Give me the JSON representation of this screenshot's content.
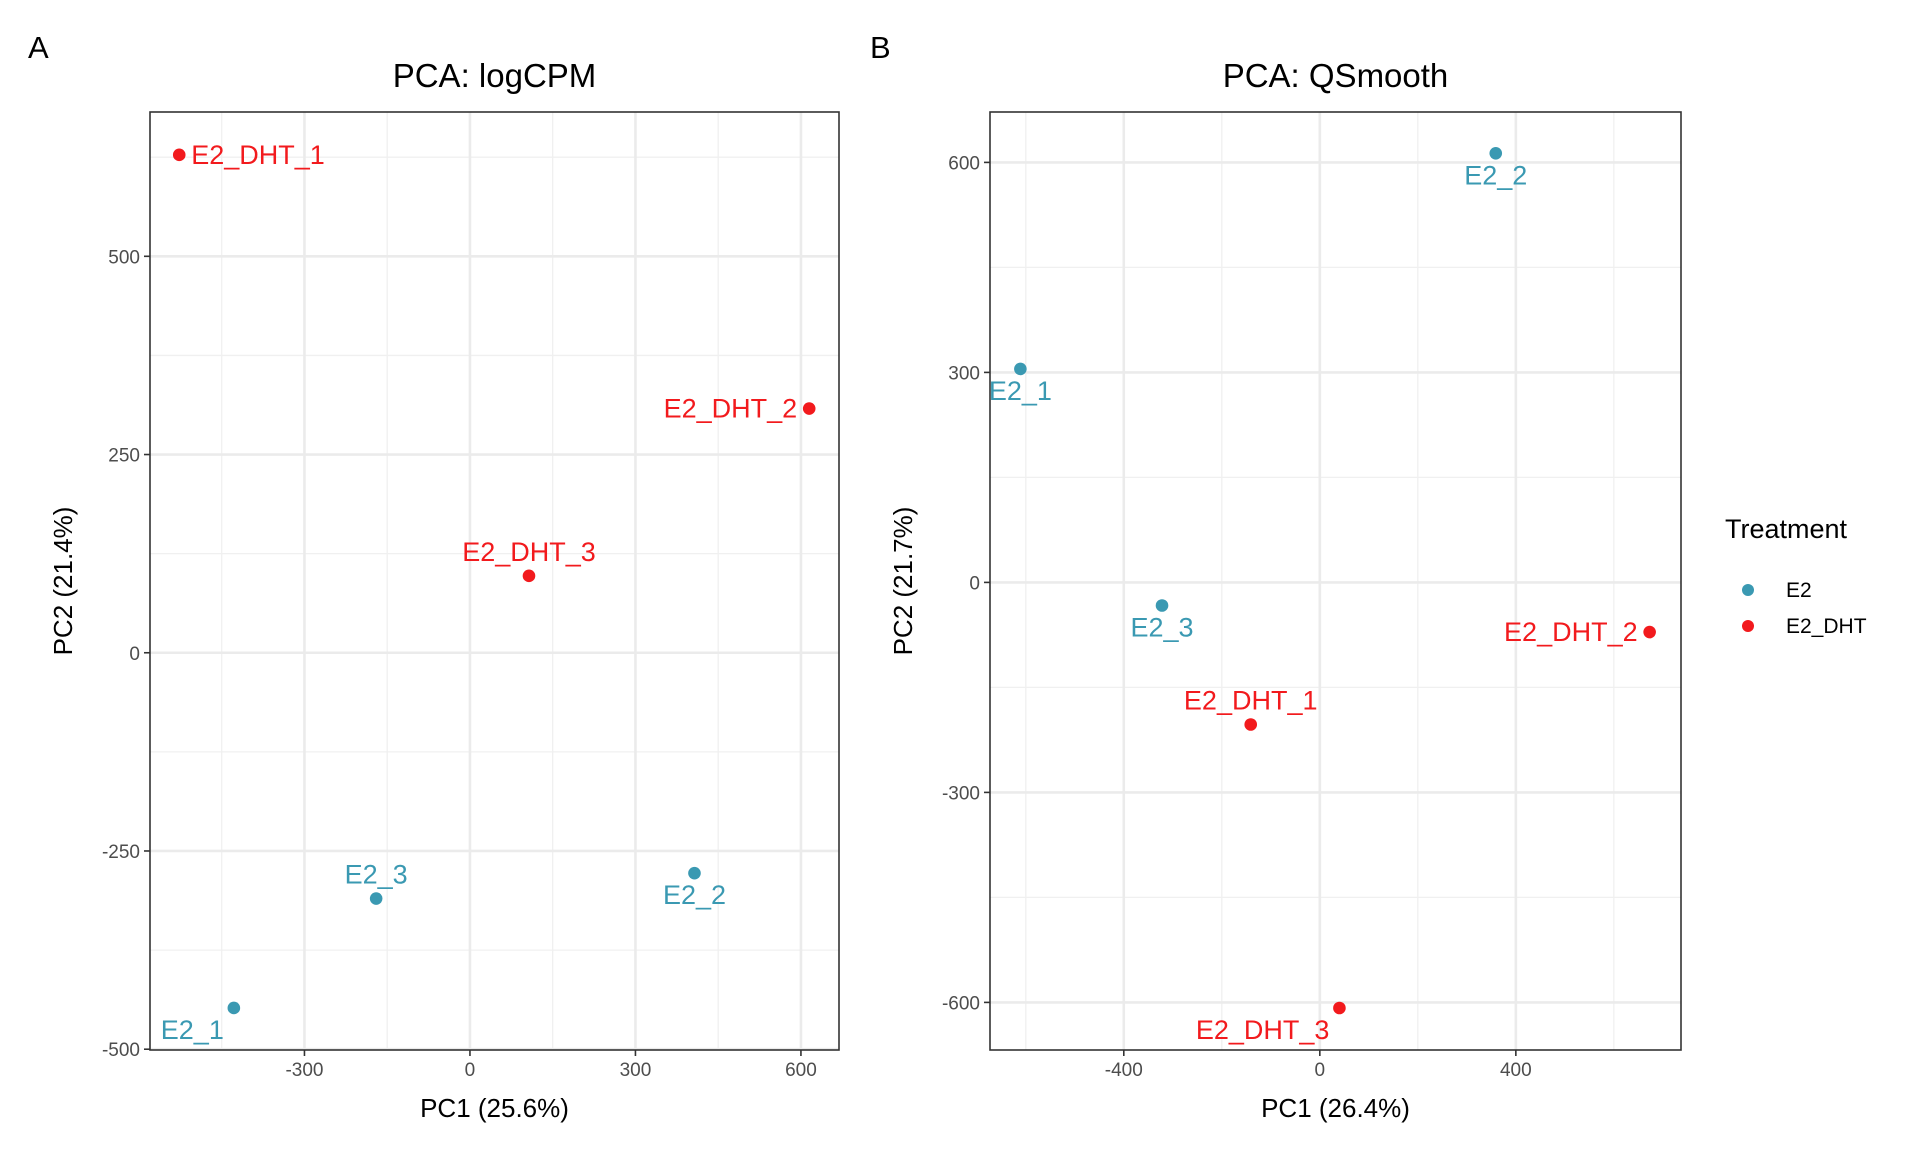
{
  "figure": {
    "panel_tags": [
      "A",
      "B"
    ],
    "legend": {
      "title": "Treatment",
      "entries": [
        {
          "label": "E2",
          "color": "#3A99B2"
        },
        {
          "label": "E2_DHT",
          "color": "#F21A1D"
        }
      ]
    }
  },
  "chart_data": [
    {
      "type": "scatter",
      "panel": "A",
      "title": "PCA: logCPM",
      "xlabel": "PC1 (25.6%)",
      "ylabel": "PC2 (21.4%)",
      "xlim": [
        -580,
        669
      ],
      "ylim": [
        -501,
        682
      ],
      "xticks": [
        -300,
        0,
        300,
        600
      ],
      "yticks": [
        -500,
        -250,
        0,
        250,
        500
      ],
      "xminor": [
        -450,
        -150,
        150,
        450
      ],
      "yminor": [
        -375,
        -125,
        125,
        375,
        625
      ],
      "grid": true,
      "points": [
        {
          "label": "E2_DHT_1",
          "group": "E2_DHT",
          "x": -527,
          "y": 628,
          "label_pos": "right"
        },
        {
          "label": "E2_DHT_2",
          "group": "E2_DHT",
          "x": 615,
          "y": 308,
          "label_pos": "left"
        },
        {
          "label": "E2_DHT_3",
          "group": "E2_DHT",
          "x": 107,
          "y": 97,
          "label_pos": "above"
        },
        {
          "label": "E2_1",
          "group": "E2",
          "x": -428,
          "y": -448,
          "label_pos": "below-left"
        },
        {
          "label": "E2_2",
          "group": "E2",
          "x": 407,
          "y": -278,
          "label_pos": "below"
        },
        {
          "label": "E2_3",
          "group": "E2",
          "x": -170,
          "y": -310,
          "label_pos": "above"
        }
      ]
    },
    {
      "type": "scatter",
      "panel": "B",
      "title": "PCA: QSmooth",
      "xlabel": "PC1 (26.4%)",
      "ylabel": "PC2 (21.7%)",
      "xlim": [
        -673,
        737
      ],
      "ylim": [
        -668,
        672
      ],
      "xticks": [
        -400,
        0,
        400
      ],
      "yticks": [
        -600,
        -300,
        0,
        300,
        600
      ],
      "xminor": [
        -600,
        -200,
        200,
        600
      ],
      "yminor": [
        -450,
        -150,
        150,
        450
      ],
      "grid": true,
      "points": [
        {
          "label": "E2_1",
          "group": "E2",
          "x": -611,
          "y": 305,
          "label_pos": "below"
        },
        {
          "label": "E2_2",
          "group": "E2",
          "x": 359,
          "y": 613,
          "label_pos": "below"
        },
        {
          "label": "E2_3",
          "group": "E2",
          "x": -322,
          "y": -33,
          "label_pos": "below"
        },
        {
          "label": "E2_DHT_1",
          "group": "E2_DHT",
          "x": -141,
          "y": -203,
          "label_pos": "above"
        },
        {
          "label": "E2_DHT_2",
          "group": "E2_DHT",
          "x": 673,
          "y": -71,
          "label_pos": "left"
        },
        {
          "label": "E2_DHT_3",
          "group": "E2_DHT",
          "x": 40,
          "y": -608,
          "label_pos": "below-left"
        }
      ]
    }
  ]
}
